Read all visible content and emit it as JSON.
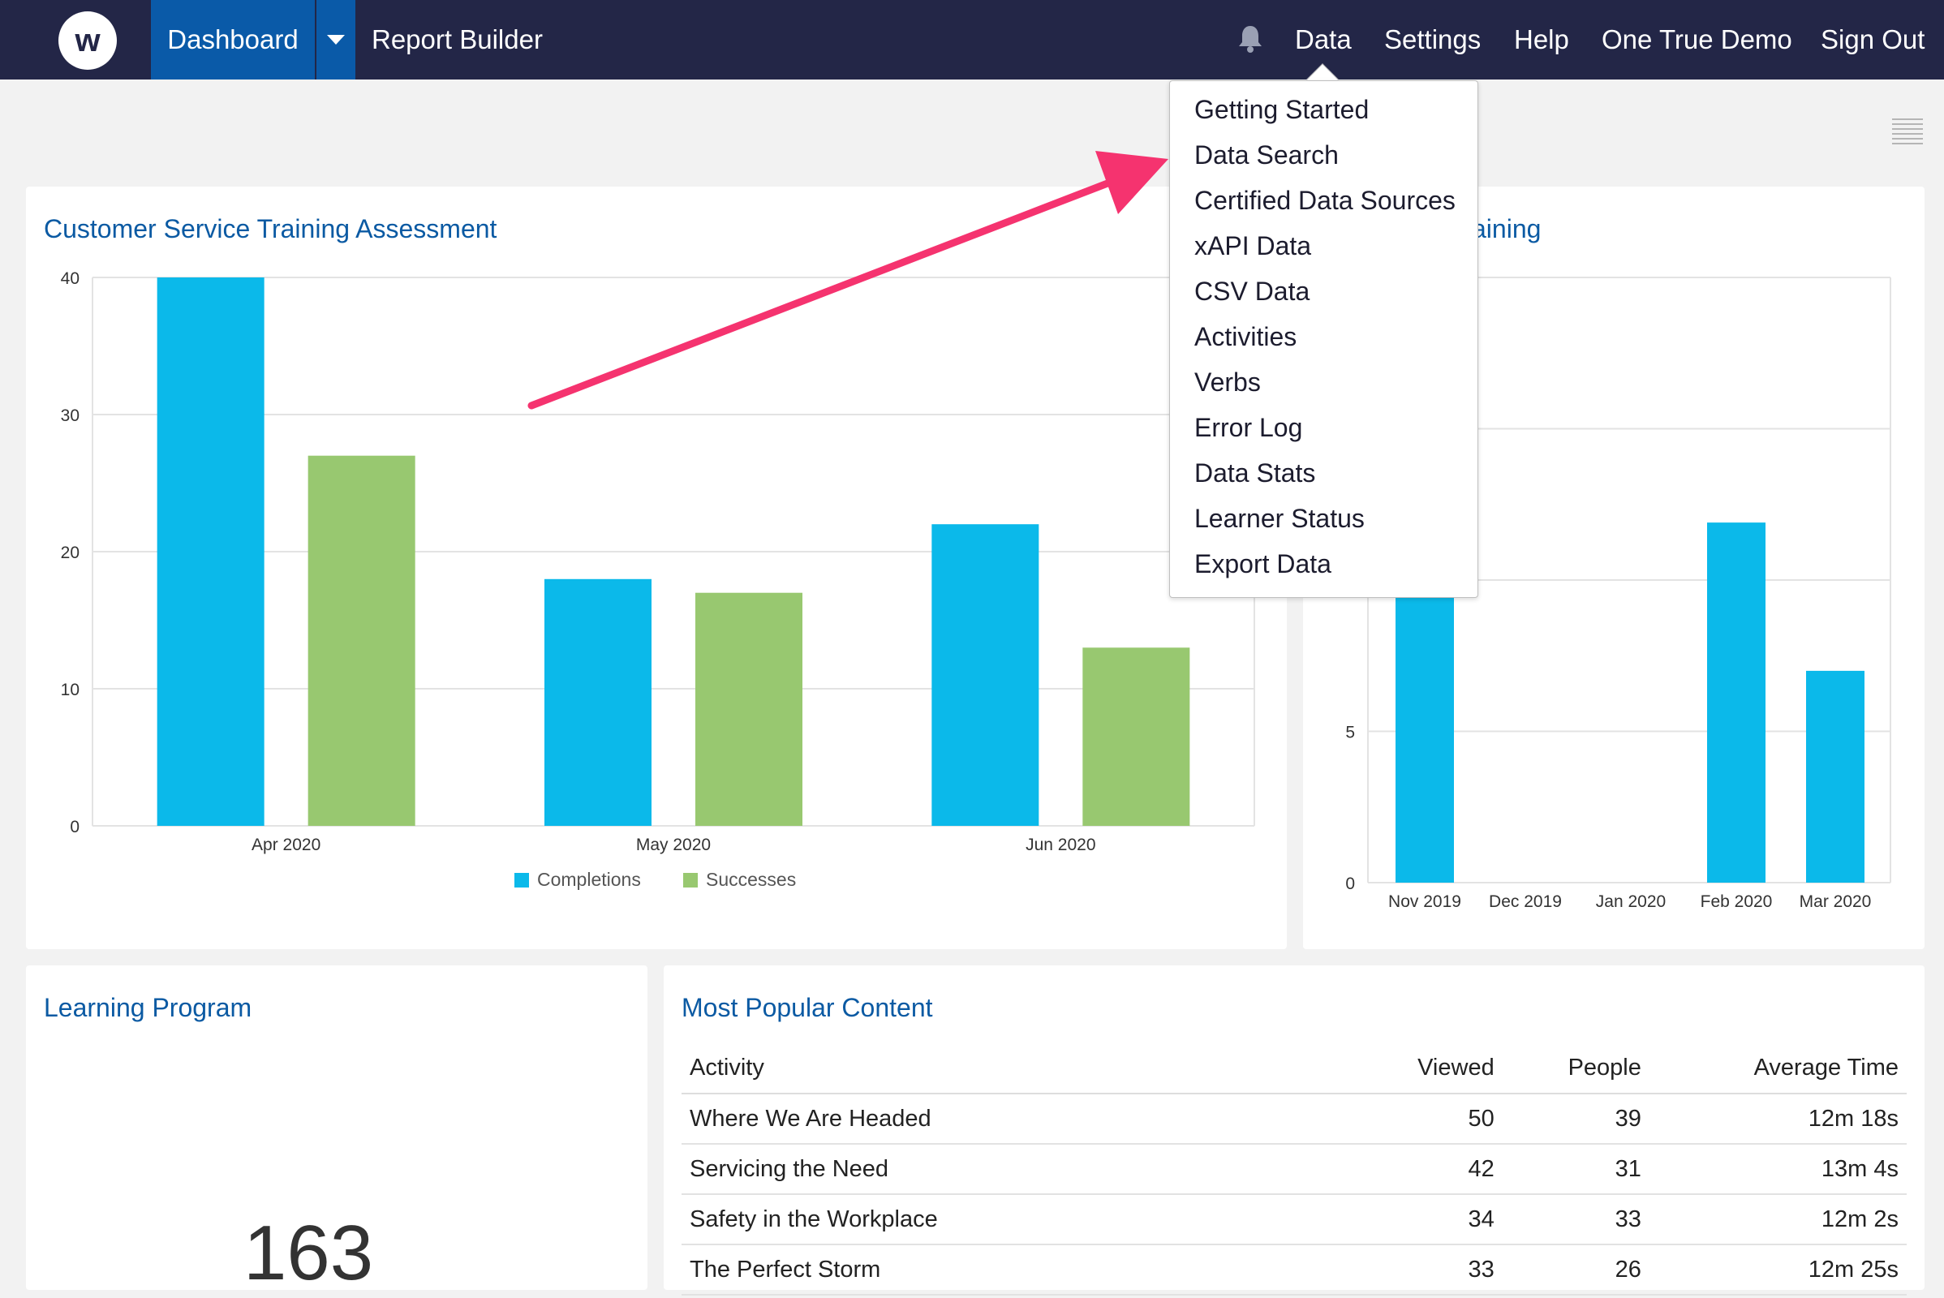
{
  "nav": {
    "logo_letter": "w",
    "dashboard": "Dashboard",
    "report_builder": "Report Builder",
    "data": "Data",
    "settings": "Settings",
    "help": "Help",
    "account": "One True Demo",
    "sign_out": "Sign Out"
  },
  "data_menu": {
    "items": [
      "Getting Started",
      "Data Search",
      "Certified Data Sources",
      "xAPI Data",
      "CSV Data",
      "Activities",
      "Verbs",
      "Error Log",
      "Data Stats",
      "Learner Status",
      "Export Data"
    ]
  },
  "cards": {
    "assessment_title": "Customer Service Training Assessment",
    "second_chart_title_visible": "aining",
    "learning_program_title": "Learning Program",
    "learning_program_value": "163",
    "popular_title": "Most Popular Content"
  },
  "popular_table": {
    "headers": [
      "Activity",
      "Viewed",
      "People",
      "Average Time"
    ],
    "rows": [
      [
        "Where We Are Headed",
        "50",
        "39",
        "12m 18s"
      ],
      [
        "Servicing the Need",
        "42",
        "31",
        "13m 4s"
      ],
      [
        "Safety in the Workplace",
        "34",
        "33",
        "12m 2s"
      ],
      [
        "The Perfect Storm",
        "33",
        "26",
        "12m 25s"
      ]
    ]
  },
  "colors": {
    "nav_bg": "#232647",
    "nav_active": "#0a5aa8",
    "completions": "#0bb9ea",
    "successes": "#98c870",
    "title_blue": "#0b5aa3",
    "annotation_arrow": "#f5336f"
  },
  "chart_data": [
    {
      "type": "bar",
      "title": "Customer Service Training Assessment",
      "categories": [
        "Apr 2020",
        "May 2020",
        "Jun 2020"
      ],
      "series": [
        {
          "name": "Completions",
          "values": [
            40,
            18,
            22
          ]
        },
        {
          "name": "Successes",
          "values": [
            27,
            17,
            13
          ]
        }
      ],
      "yticks": [
        "0",
        "10",
        "20",
        "30",
        "40"
      ],
      "ylim": [
        0,
        40
      ],
      "grid": true,
      "legend": "bottom"
    },
    {
      "type": "bar",
      "title": "",
      "categories": [
        "Nov 2019",
        "Dec 2019",
        "Jan 2020",
        "Feb 2020",
        "Mar 2020"
      ],
      "series": [
        {
          "name": "",
          "values": [
            10,
            0,
            0,
            11.9,
            7
          ]
        }
      ],
      "yticks": [
        "0",
        "5"
      ],
      "ylim": [
        0,
        20
      ],
      "grid": true,
      "legend": "none"
    }
  ]
}
